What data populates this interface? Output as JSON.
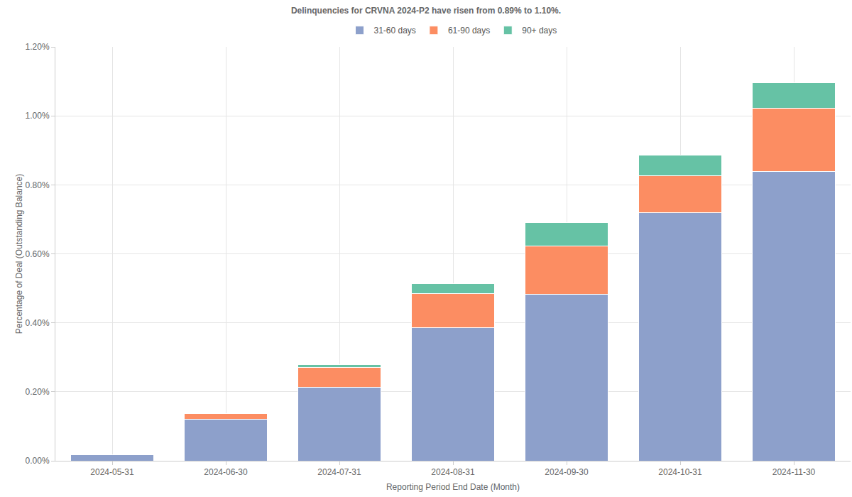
{
  "chart_data": {
    "type": "bar",
    "title": "Delinquencies for CRVNA 2024-P2 have risen from 0.89% to 1.10%.",
    "x_label": "Reporting Period End Date (Month)",
    "y_label": "Percentage of Deal (Outstanding Balance)",
    "categories": [
      "2024-05-31",
      "2024-06-30",
      "2024-07-31",
      "2024-08-31",
      "2024-09-30",
      "2024-10-31",
      "2024-11-30"
    ],
    "series": [
      {
        "name": "31-60 days",
        "color": "#8da0cb",
        "values": [
          0.017,
          0.12,
          0.213,
          0.386,
          0.483,
          0.72,
          0.838
        ]
      },
      {
        "name": "61-90 days",
        "color": "#fc8d62",
        "values": [
          0,
          0.017,
          0.057,
          0.099,
          0.14,
          0.106,
          0.184
        ]
      },
      {
        "name": "90+ days",
        "color": "#66c2a5",
        "values": [
          0,
          0,
          0.008,
          0.028,
          0.067,
          0.06,
          0.074
        ]
      }
    ],
    "ylim": [
      0,
      1.2
    ],
    "yticks": [
      {
        "value": 0,
        "label": "0.00%"
      },
      {
        "value": 0.2,
        "label": "0.20%"
      },
      {
        "value": 0.4,
        "label": "0.40%"
      },
      {
        "value": 0.6,
        "label": "0.60%"
      },
      {
        "value": 0.8,
        "label": "0.80%"
      },
      {
        "value": 1.0,
        "label": "1.00%"
      },
      {
        "value": 1.2,
        "label": "1.20%"
      }
    ],
    "stacked": true,
    "grid": true,
    "legend": "top"
  }
}
